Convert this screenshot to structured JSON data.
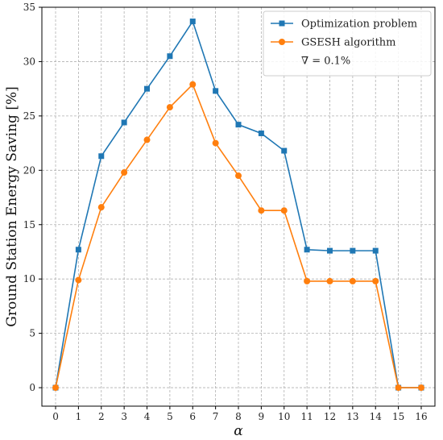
{
  "chart_data": {
    "type": "line",
    "xlabel": "α",
    "ylabel": "Ground Station Energy Saving [%]",
    "xlim": [
      -0.6,
      16.6
    ],
    "ylim": [
      -1.7,
      35
    ],
    "grid": true,
    "legend_position": "top-right",
    "x": [
      0,
      1,
      2,
      3,
      4,
      5,
      6,
      7,
      8,
      9,
      10,
      11,
      12,
      13,
      14,
      15,
      16
    ],
    "x_ticks": [
      0,
      1,
      2,
      3,
      4,
      5,
      6,
      7,
      8,
      9,
      10,
      11,
      12,
      13,
      14,
      15,
      16
    ],
    "y_ticks": [
      0,
      5,
      10,
      15,
      20,
      25,
      30,
      35
    ],
    "series": [
      {
        "name": "Optimization problem",
        "color": "#1f77b4",
        "marker": "square",
        "values": [
          0,
          12.7,
          21.3,
          24.4,
          27.5,
          30.5,
          33.7,
          27.3,
          24.2,
          23.4,
          21.8,
          12.7,
          12.6,
          12.6,
          12.6,
          0,
          0
        ]
      },
      {
        "name": "GSESH algorithm",
        "color": "#ff7f0e",
        "marker": "circle",
        "values": [
          0,
          9.9,
          16.6,
          19.8,
          22.8,
          25.8,
          27.9,
          22.5,
          19.5,
          16.3,
          16.3,
          9.8,
          9.8,
          9.8,
          9.8,
          0,
          0
        ]
      }
    ],
    "annotation": "∇ = 0.1%"
  }
}
